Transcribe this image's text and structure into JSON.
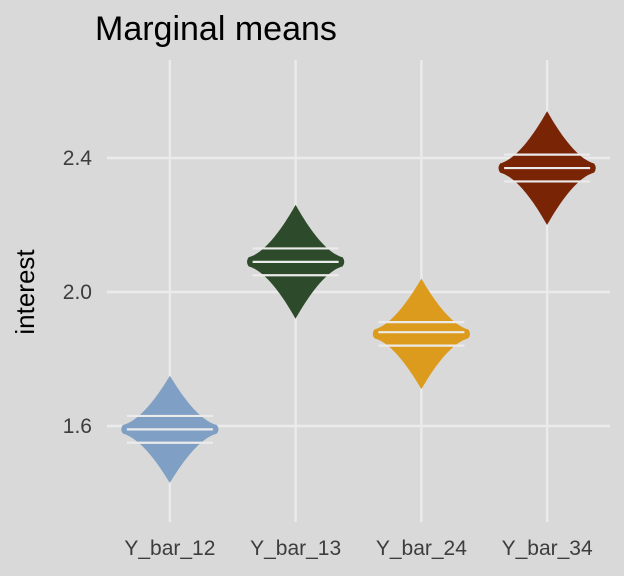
{
  "chart_data": {
    "type": "violin",
    "title": "Marginal means",
    "xlabel": "",
    "ylabel": "interest",
    "ylim": [
      1.28,
      2.68
    ],
    "yticks": [
      1.6,
      2.0,
      2.4
    ],
    "ytick_labels": [
      "1.6",
      "2.0",
      "2.4"
    ],
    "categories": [
      "Y_bar_12",
      "Y_bar_13",
      "Y_bar_24",
      "Y_bar_34"
    ],
    "distributions": [
      {
        "category": "Y_bar_12",
        "min": 1.43,
        "max": 1.75,
        "quantiles": [
          1.55,
          1.59,
          1.63
        ],
        "color": "#7f9fc4"
      },
      {
        "category": "Y_bar_13",
        "min": 1.92,
        "max": 2.26,
        "quantiles": [
          2.05,
          2.09,
          2.13
        ],
        "color": "#2d4a2b"
      },
      {
        "category": "Y_bar_24",
        "min": 1.71,
        "max": 2.04,
        "quantiles": [
          1.84,
          1.88,
          1.91
        ],
        "color": "#dc9b1c"
      },
      {
        "category": "Y_bar_34",
        "min": 2.2,
        "max": 2.54,
        "quantiles": [
          2.33,
          2.37,
          2.41
        ],
        "color": "#7a2406"
      }
    ],
    "grid": true,
    "legend": "none"
  }
}
